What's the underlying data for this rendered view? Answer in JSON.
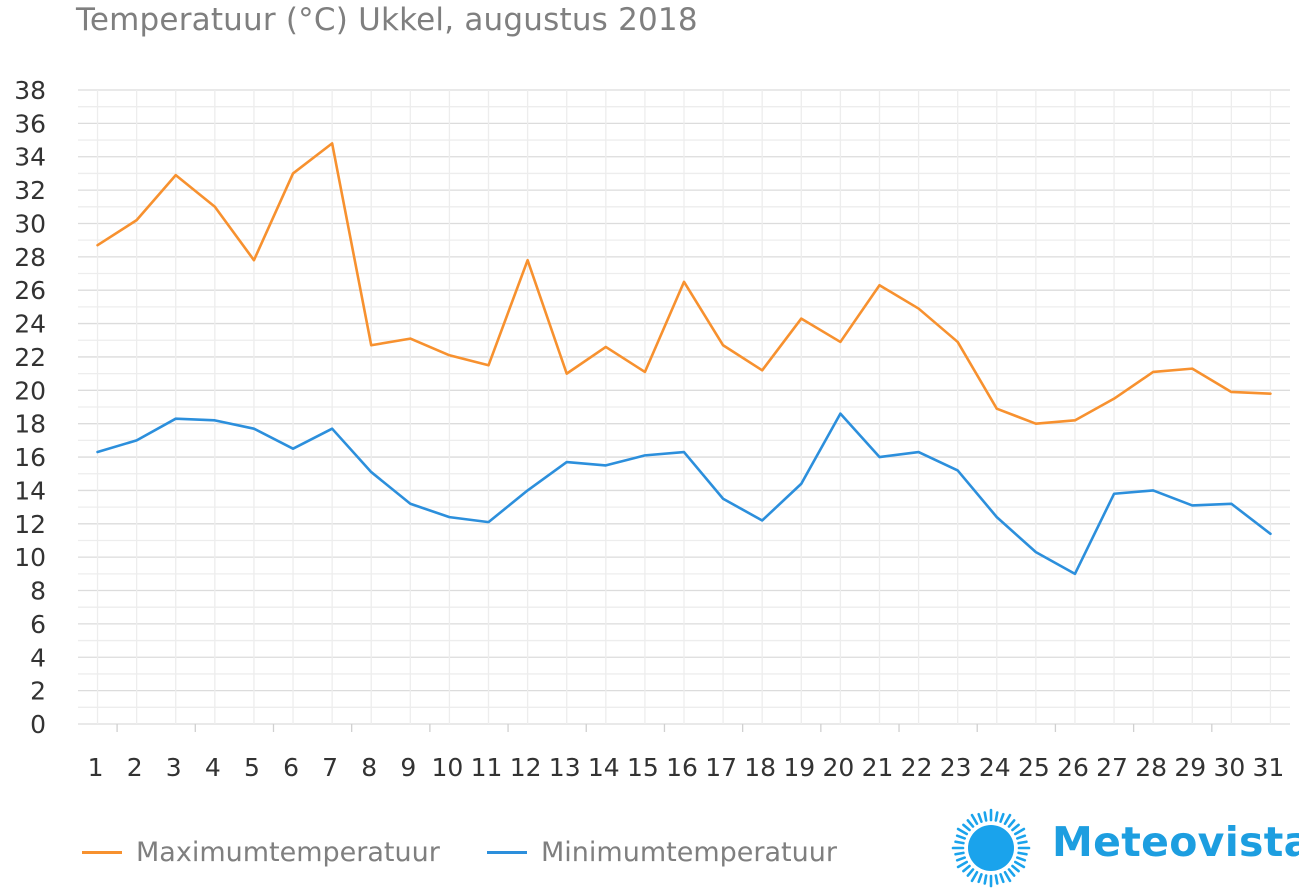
{
  "title": "Temperatuur (°C)  Ukkel, augustus 2018",
  "chart_data": {
    "type": "line",
    "title": "Temperatuur (°C)  Ukkel, augustus 2018",
    "xlabel": "",
    "ylabel": "",
    "categories": [
      "1",
      "2",
      "3",
      "4",
      "5",
      "6",
      "7",
      "8",
      "9",
      "10",
      "11",
      "12",
      "13",
      "14",
      "15",
      "16",
      "17",
      "18",
      "19",
      "20",
      "21",
      "22",
      "23",
      "24",
      "25",
      "26",
      "27",
      "28",
      "29",
      "30",
      "31"
    ],
    "yticks": [
      "0",
      "2",
      "4",
      "6",
      "8",
      "10",
      "12",
      "14",
      "16",
      "18",
      "20",
      "22",
      "24",
      "26",
      "28",
      "30",
      "32",
      "34",
      "36",
      "38"
    ],
    "ylim": [
      0,
      38
    ],
    "grid": true,
    "legend_position": "bottom-left",
    "series": [
      {
        "name": "Maximumtemperatuur",
        "color": "#f7912f",
        "values": [
          28.7,
          30.2,
          32.9,
          31.0,
          27.8,
          33.0,
          34.8,
          22.7,
          23.1,
          22.1,
          21.5,
          27.8,
          21.0,
          22.6,
          21.1,
          26.5,
          22.7,
          21.2,
          24.3,
          22.9,
          26.3,
          24.9,
          22.9,
          18.9,
          18.0,
          18.2,
          19.5,
          21.1,
          21.3,
          19.9,
          19.8
        ]
      },
      {
        "name": "Minimumtemperatuur",
        "color": "#2c8fdc",
        "values": [
          16.3,
          17.0,
          18.3,
          18.2,
          17.7,
          16.5,
          17.7,
          15.1,
          13.2,
          12.4,
          12.1,
          14.0,
          15.7,
          15.5,
          16.1,
          16.3,
          13.5,
          12.2,
          14.4,
          18.6,
          16.0,
          16.3,
          15.2,
          12.4,
          10.3,
          9.0,
          13.8,
          14.0,
          13.1,
          13.2,
          11.4
        ]
      }
    ]
  },
  "legend": {
    "max_label": "Maximumtemperatuur",
    "min_label": "Minimumtemperatuur"
  },
  "logo": {
    "text": "Meteovista",
    "color": "#1d9ee0",
    "icon": "sun-icon"
  }
}
